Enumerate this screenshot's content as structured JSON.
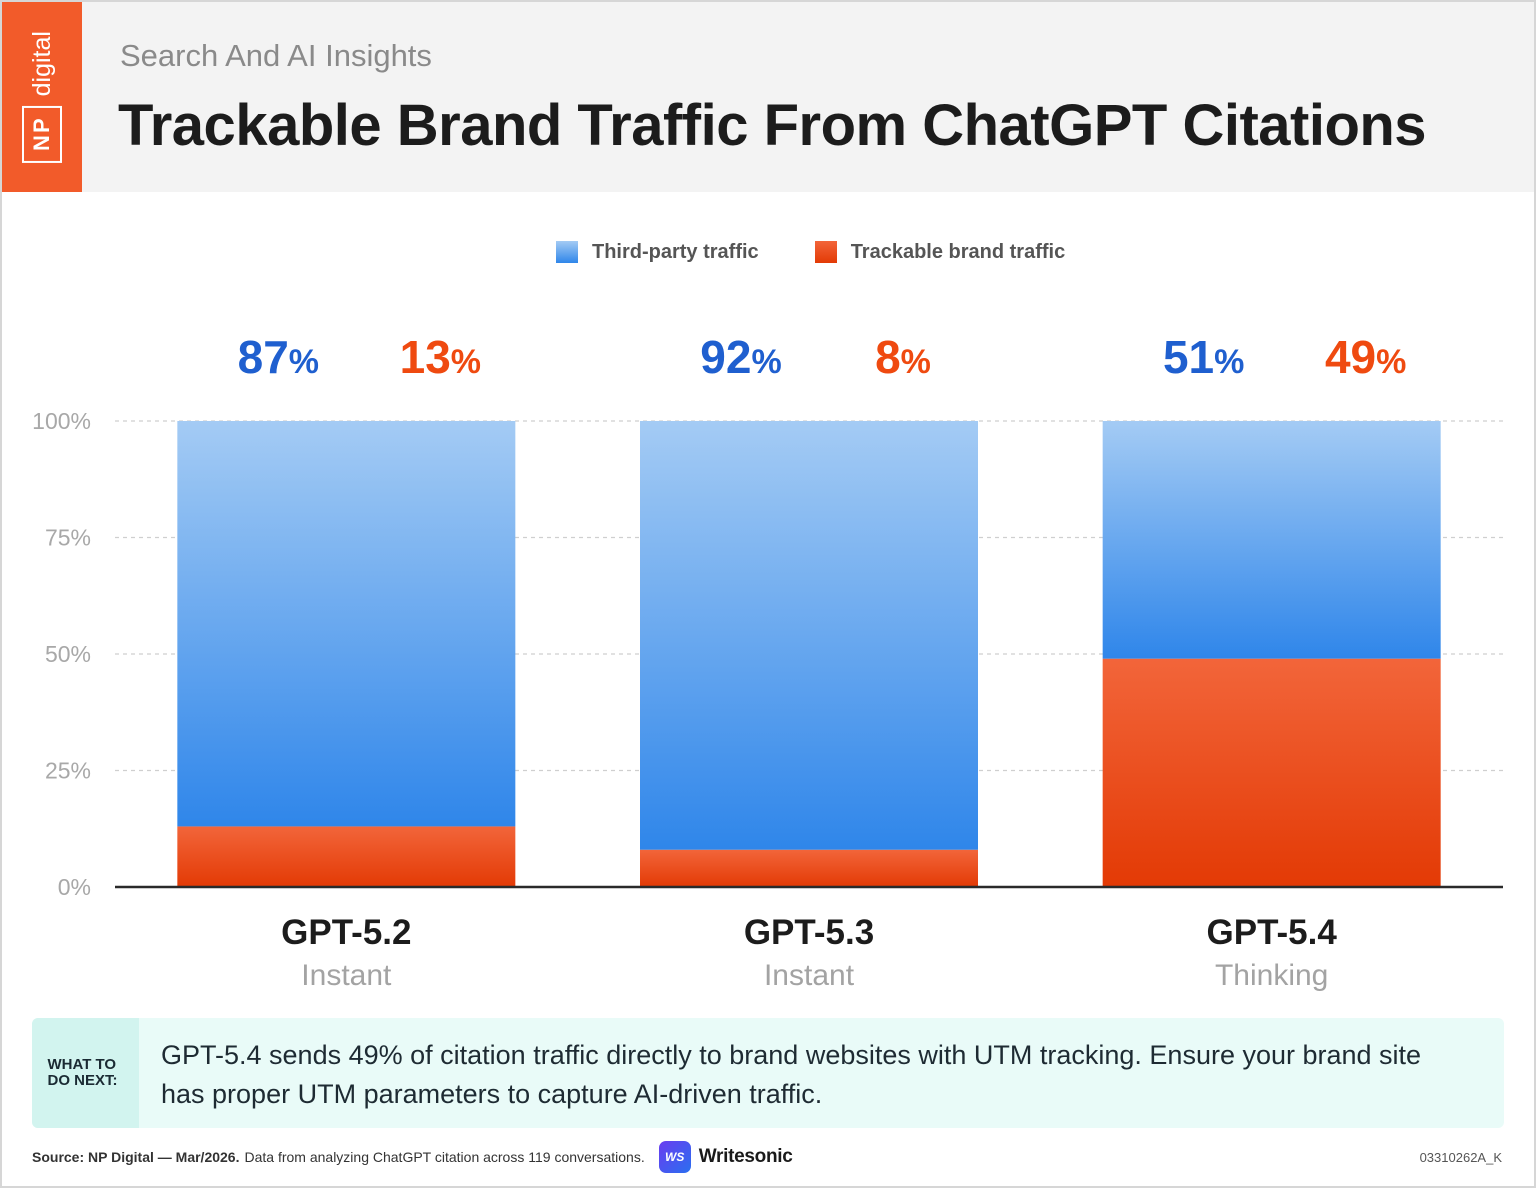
{
  "header": {
    "logo_np": "NP",
    "logo_digital": "digital",
    "subtitle": "Search And AI Insights",
    "title": "Trackable Brand Traffic From ChatGPT Citations"
  },
  "colors": {
    "third_party_top": "#a4cbf4",
    "third_party_bottom": "#2f86ea",
    "third_party_label": "#1f5fcf",
    "brand_top": "#f2653a",
    "brand_bottom": "#e33a05",
    "brand_label": "#ef4a10"
  },
  "chart_data": {
    "type": "bar",
    "stacked": true,
    "categories": [
      "GPT-5.2",
      "GPT-5.3",
      "GPT-5.4"
    ],
    "category_sublabels": [
      "Instant",
      "Instant",
      "Thinking"
    ],
    "series": [
      {
        "name": "Third-party traffic",
        "values": [
          87,
          92,
          51
        ]
      },
      {
        "name": "Trackable brand traffic",
        "values": [
          13,
          8,
          49
        ]
      }
    ],
    "value_labels": [
      [
        "87%",
        "92%",
        "51%"
      ],
      [
        "13%",
        "8%",
        "49%"
      ]
    ],
    "yticks": [
      "0%",
      "25%",
      "50%",
      "75%",
      "100%"
    ],
    "ylim": [
      0,
      100
    ],
    "grid": true,
    "legend": "top-center"
  },
  "callout": {
    "tag": "WHAT TO DO NEXT:",
    "text": "GPT-5.4 sends 49% of citation traffic directly to brand websites with UTM tracking. Ensure your brand site has proper UTM parameters to capture AI-driven traffic."
  },
  "footer": {
    "source_bold": "Source: NP Digital — Mar/2026.",
    "source_rest": "Data from analyzing ChatGPT citation across 119 conversations.",
    "partner_badge": "WS",
    "partner_name": "Writesonic",
    "code": "03310262A_K"
  }
}
